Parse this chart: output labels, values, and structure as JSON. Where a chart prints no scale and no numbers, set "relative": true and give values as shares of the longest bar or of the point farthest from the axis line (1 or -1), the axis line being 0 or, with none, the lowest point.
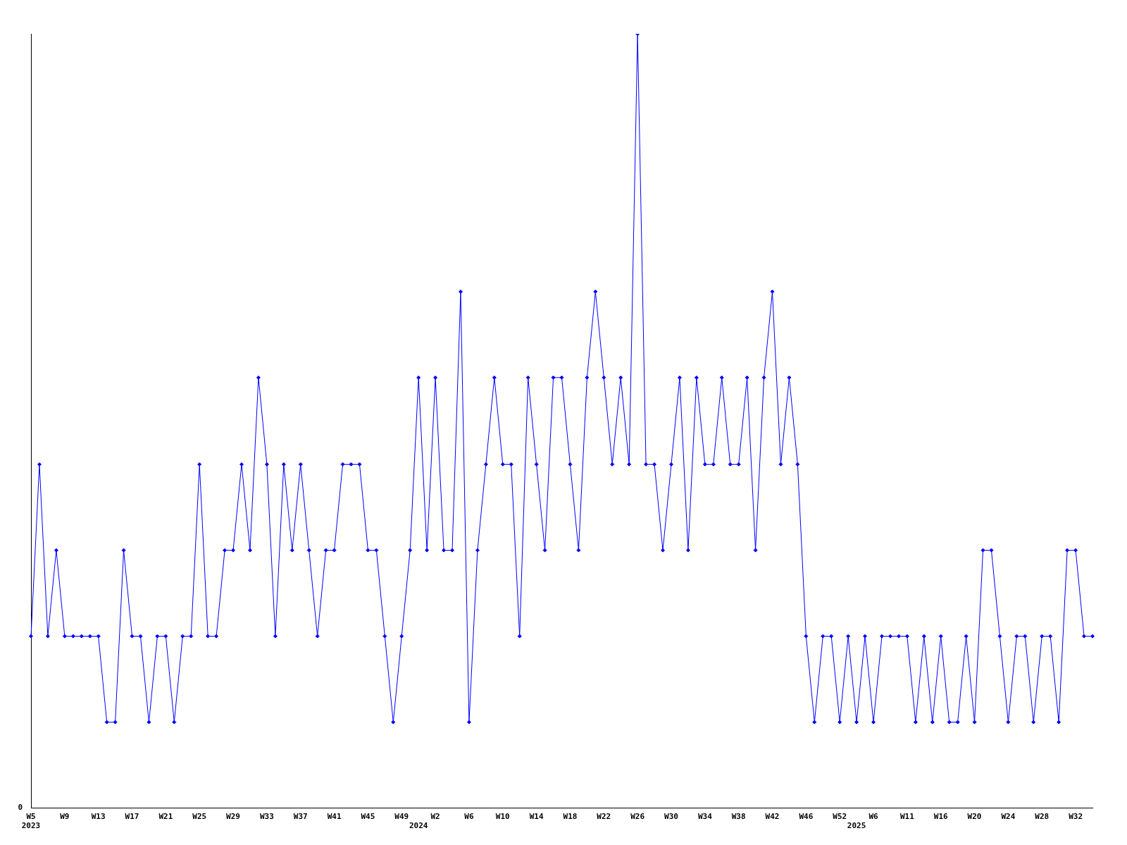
{
  "chart_data": {
    "type": "line",
    "relative": true,
    "marker": "diamond",
    "line_style": "solid",
    "grid": false,
    "legend": false,
    "annotations": [
      "0"
    ],
    "categories": [
      "W5\n2023",
      null,
      null,
      null,
      "W9",
      null,
      null,
      null,
      "W13",
      null,
      null,
      null,
      "W17",
      null,
      null,
      null,
      "W21",
      null,
      null,
      null,
      "W25",
      null,
      null,
      null,
      "W29",
      null,
      null,
      null,
      "W33",
      null,
      null,
      null,
      "W37",
      null,
      null,
      null,
      "W41",
      null,
      null,
      null,
      "W45",
      null,
      null,
      null,
      "W49",
      null,
      "\n2024",
      null,
      "W2",
      null,
      null,
      null,
      "W6",
      null,
      null,
      null,
      "W10",
      null,
      null,
      null,
      "W14",
      null,
      null,
      null,
      "W18",
      null,
      null,
      null,
      "W22",
      null,
      null,
      null,
      "W26",
      null,
      null,
      null,
      "W30",
      null,
      null,
      null,
      "W34",
      null,
      null,
      null,
      "W38",
      null,
      null,
      null,
      "W42",
      null,
      null,
      null,
      "W46",
      null,
      null,
      null,
      "W52",
      null,
      "\n2025",
      null,
      "W6",
      null,
      null,
      null,
      "W11",
      null,
      null,
      null,
      "W16",
      null,
      null,
      null,
      "W20",
      null,
      null,
      null,
      "W24",
      null,
      null,
      null,
      "W28",
      null,
      null,
      null,
      "W32",
      null,
      null
    ],
    "series": [
      {
        "color": "#0000ff",
        "values": [
          0.222,
          0.444,
          0.222,
          0.333,
          0.222,
          0.222,
          0.222,
          0.222,
          0.222,
          0.111,
          0.111,
          0.333,
          0.222,
          0.222,
          0.111,
          0.222,
          0.222,
          0.111,
          0.222,
          0.222,
          0.444,
          0.222,
          0.222,
          0.333,
          0.333,
          0.444,
          0.333,
          0.556,
          0.444,
          0.222,
          0.444,
          0.333,
          0.444,
          0.333,
          0.222,
          0.333,
          0.333,
          0.444,
          0.444,
          0.444,
          0.333,
          0.333,
          0.222,
          0.111,
          0.222,
          0.333,
          0.556,
          0.333,
          0.556,
          0.333,
          0.333,
          0.667,
          0.111,
          0.333,
          0.444,
          0.556,
          0.444,
          0.444,
          0.222,
          0.556,
          0.444,
          0.333,
          0.556,
          0.556,
          0.444,
          0.333,
          0.556,
          0.667,
          0.556,
          0.444,
          0.556,
          0.444,
          1,
          0.444,
          0.444,
          0.333,
          0.444,
          0.556,
          0.333,
          0.556,
          0.444,
          0.444,
          0.556,
          0.444,
          0.444,
          0.556,
          0.333,
          0.556,
          0.667,
          0.444,
          0.556,
          0.444,
          0.222,
          0.111,
          0.222,
          0.222,
          0.111,
          0.222,
          0.111,
          0.222,
          0.111,
          0.222,
          0.222,
          0.222,
          0.222,
          0.111,
          0.222,
          0.111,
          0.222,
          0.111,
          0.111,
          0.222,
          0.111,
          0.333,
          0.333,
          0.222,
          0.111,
          0.222,
          0.222,
          0.111,
          0.222,
          0.222,
          0.111,
          0.333,
          0.333,
          0.222,
          0.222
        ]
      }
    ]
  }
}
